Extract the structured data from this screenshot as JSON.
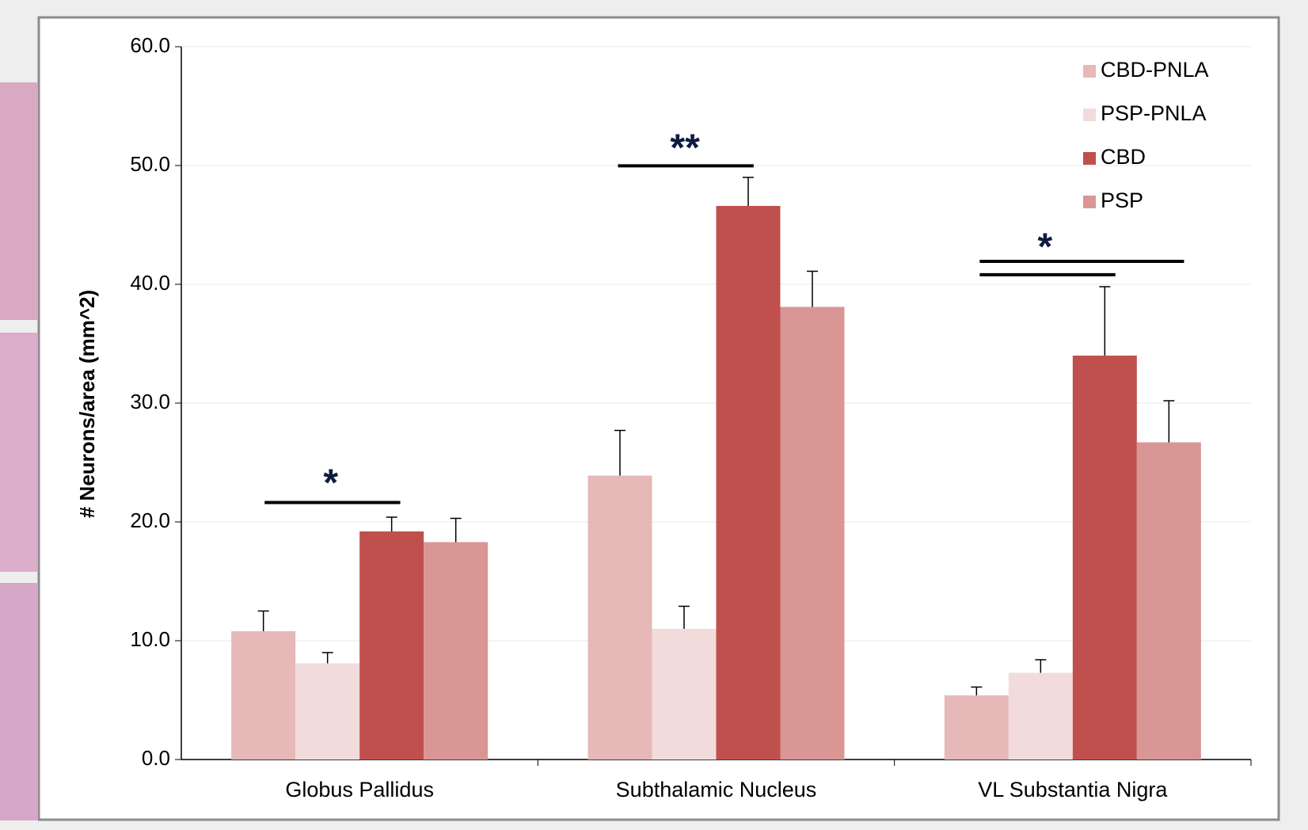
{
  "chart_data": {
    "type": "bar",
    "y_label": "# Neurons/area (mm^2)",
    "categories": [
      "Globus Pallidus",
      "Subthalamic Nucleus",
      "VL Substantia Nigra"
    ],
    "series": [
      {
        "name": "CBD-PNLA",
        "color": "#e6b8b7",
        "values": [
          10.8,
          23.9,
          5.4
        ],
        "errors": [
          1.7,
          3.8,
          0.7
        ]
      },
      {
        "name": "PSP-PNLA",
        "color": "#f2dcdb",
        "values": [
          8.1,
          11.0,
          7.3
        ],
        "errors": [
          0.9,
          1.9,
          1.1
        ]
      },
      {
        "name": "CBD",
        "color": "#c0504d",
        "values": [
          19.2,
          46.6,
          34.0
        ],
        "errors": [
          1.2,
          2.4,
          5.8
        ]
      },
      {
        "name": "PSP",
        "color": "#da9694",
        "values": [
          18.3,
          38.1,
          26.7
        ],
        "errors": [
          2.0,
          3.0,
          3.5
        ]
      }
    ],
    "annotations": [
      "*",
      "**",
      "*"
    ],
    "ylim": [
      0,
      60
    ],
    "yticks": [
      {
        "value": 0,
        "label": "0.0"
      },
      {
        "value": 10,
        "label": "10.0"
      },
      {
        "value": 20,
        "label": "20.0"
      },
      {
        "value": 30,
        "label": "30.0"
      },
      {
        "value": 40,
        "label": "40.0"
      },
      {
        "value": 50,
        "label": "50.0"
      },
      {
        "value": 60,
        "label": "60.0"
      }
    ],
    "grid": true,
    "legend": "top-right"
  }
}
